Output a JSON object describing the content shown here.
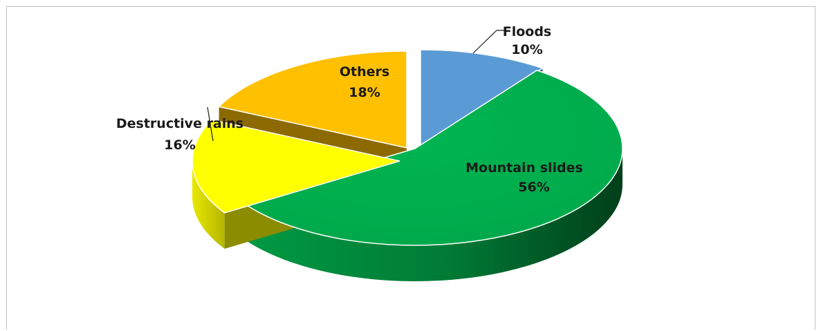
{
  "chart_data": {
    "type": "pie",
    "style": "3d-exploded",
    "title": "",
    "slices": [
      {
        "label": "Floods",
        "value": 10,
        "display": "10%",
        "color": "#5b9bd5"
      },
      {
        "label": "Mountain slides",
        "value": 56,
        "display": "56%",
        "color": "#00b050"
      },
      {
        "label": "Destructive rains",
        "value": 16,
        "display": "16%",
        "color": "#ffff00"
      },
      {
        "label": "Others",
        "value": 18,
        "display": "18%",
        "color": "#ffc000"
      }
    ],
    "legend": "none"
  }
}
